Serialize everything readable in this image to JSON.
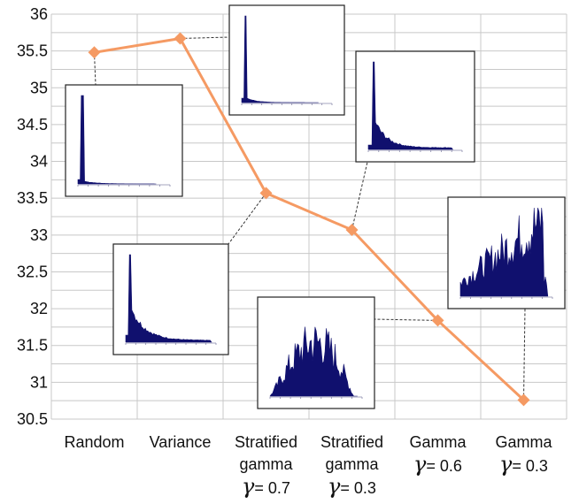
{
  "chart_data": {
    "type": "line",
    "categories": [
      [
        "Random"
      ],
      [
        "Variance"
      ],
      [
        "Stratified",
        "gamma",
        "γ= 0.7"
      ],
      [
        "Stratified",
        "gamma",
        "γ= 0.3"
      ],
      [
        "Gamma",
        "γ= 0.6"
      ],
      [
        "Gamma",
        "γ= 0.3"
      ]
    ],
    "values": [
      35.48,
      35.67,
      33.57,
      33.07,
      31.84,
      30.76
    ],
    "title": "",
    "xlabel": "",
    "ylabel": "",
    "ylim": [
      30.5,
      36
    ],
    "yticks": [
      "30.5",
      "31",
      "31.5",
      "32",
      "32.5",
      "33",
      "33.5",
      "34",
      "34.5",
      "35",
      "35.5",
      "36"
    ],
    "grid": true,
    "series_color": "#f59a63",
    "gridline_color": "#c8c8c8",
    "histogram_color": "#10106e",
    "inset_histograms": [
      {
        "attached_to": "Random",
        "shape": "single spike, short tail"
      },
      {
        "attached_to": "Variance",
        "shape": "single spike, short tail"
      },
      {
        "attached_to": "Stratified gamma γ= 0.7",
        "shape": "spike with long decaying tail"
      },
      {
        "attached_to": "Stratified gamma γ= 0.3",
        "shape": "spike with decaying tail"
      },
      {
        "attached_to": "Gamma γ= 0.6",
        "shape": "broad noisy hump"
      },
      {
        "attached_to": "Gamma γ= 0.3",
        "shape": "broad noisy rising distribution"
      }
    ]
  }
}
